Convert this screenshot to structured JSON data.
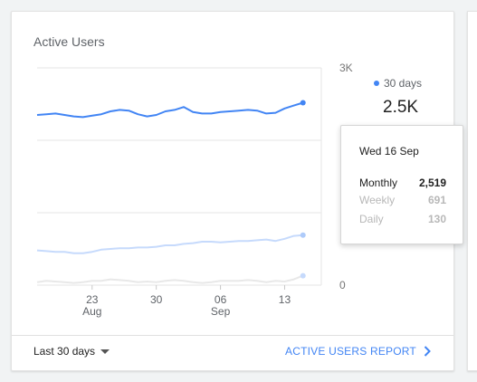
{
  "card": {
    "title": "Active Users",
    "range_label": "Last 30 days",
    "report_link": "ACTIVE USERS REPORT"
  },
  "legend": {
    "label": "30 days",
    "value": "2.5K"
  },
  "tooltip": {
    "date": "Wed 16 Sep",
    "rows": [
      {
        "label": "Monthly",
        "value": "2,519"
      },
      {
        "label": "Weekly",
        "value": "691"
      },
      {
        "label": "Daily",
        "value": "130"
      }
    ]
  },
  "ghost_values": {
    "weekly": "691",
    "daily": "130"
  },
  "icons": {
    "legend": "dot-icon",
    "range": "caret-down-icon",
    "report": "chevron-right-icon"
  },
  "colors": {
    "accent": "#4285f4",
    "weekly_line": "#c6dafc",
    "daily_line": "#e8e8e8",
    "grid": "#e6e6e6"
  },
  "chart_data": {
    "type": "line",
    "x_ticks": [
      {
        "day": 23,
        "label": "23",
        "sub": "Aug"
      },
      {
        "day": 30,
        "label": "30",
        "sub": ""
      },
      {
        "day": 37,
        "label": "06",
        "sub": "Sep"
      },
      {
        "day": 44,
        "label": "13",
        "sub": ""
      }
    ],
    "y_ticks": [
      {
        "value": 0,
        "label": "0"
      },
      {
        "value": 1000,
        "label": ""
      },
      {
        "value": 2000,
        "label": ""
      },
      {
        "value": 3000,
        "label": "3K"
      }
    ],
    "ylim": [
      0,
      3000
    ],
    "xlim": [
      17,
      48
    ],
    "x_start_day": 17,
    "series": [
      {
        "name": "Monthly",
        "values": [
          2350,
          2360,
          2370,
          2350,
          2330,
          2320,
          2340,
          2360,
          2400,
          2420,
          2410,
          2360,
          2330,
          2350,
          2400,
          2420,
          2460,
          2390,
          2370,
          2370,
          2390,
          2400,
          2410,
          2420,
          2410,
          2370,
          2380,
          2440,
          2480,
          2519
        ]
      },
      {
        "name": "Weekly",
        "values": [
          480,
          470,
          460,
          460,
          440,
          440,
          460,
          490,
          500,
          510,
          510,
          520,
          520,
          530,
          550,
          550,
          570,
          580,
          600,
          600,
          590,
          600,
          610,
          610,
          620,
          630,
          610,
          640,
          680,
          691
        ]
      },
      {
        "name": "Daily",
        "values": [
          40,
          60,
          50,
          40,
          30,
          40,
          60,
          60,
          80,
          70,
          60,
          40,
          50,
          40,
          60,
          70,
          60,
          40,
          30,
          40,
          60,
          60,
          60,
          70,
          60,
          40,
          60,
          50,
          80,
          130
        ]
      }
    ]
  }
}
